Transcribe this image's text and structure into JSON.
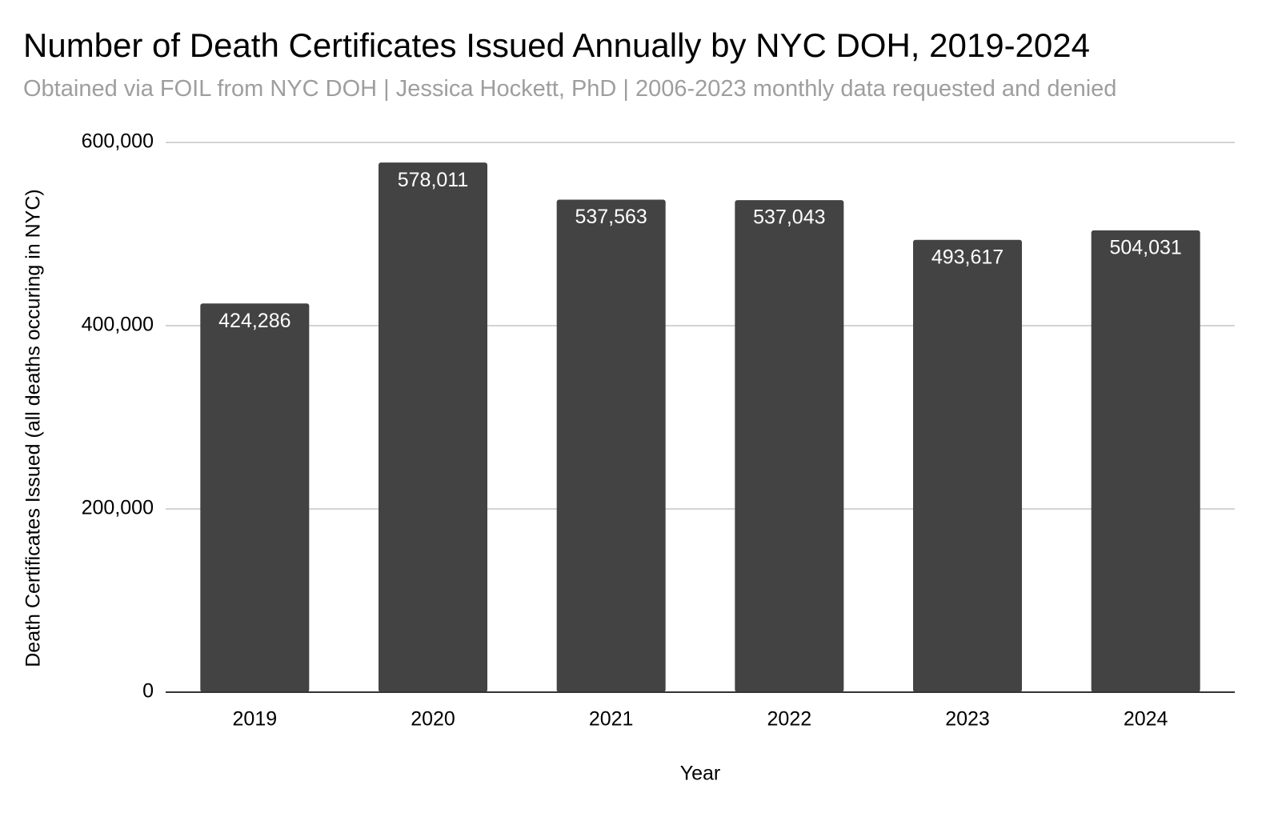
{
  "chart_data": {
    "type": "bar",
    "title": "Number of Death Certificates Issued Annually by NYC DOH, 2019-2024",
    "subtitle": "Obtained via FOIL from NYC DOH | Jessica Hockett, PhD | 2006-2023 monthly data requested and denied",
    "xlabel": "Year",
    "ylabel": "Death Certificates Issued (all deaths occuring in NYC)",
    "categories": [
      "2019",
      "2020",
      "2021",
      "2022",
      "2023",
      "2024"
    ],
    "values": [
      424286,
      578011,
      537563,
      537043,
      493617,
      504031
    ],
    "value_labels": [
      "424,286",
      "578,011",
      "537,563",
      "537,043",
      "493,617",
      "504,031"
    ],
    "ylim": [
      0,
      600000
    ],
    "y_ticks": [
      0,
      200000,
      400000,
      600000
    ],
    "y_tick_labels": [
      "0",
      "200,000",
      "400,000",
      "600,000"
    ],
    "grid": true,
    "legend": "none",
    "colors": {
      "bar": "#434343",
      "gridline": "#d3d3d3",
      "axis": "#333333",
      "title": "#000000",
      "subtitle": "#9e9e9e",
      "data_label": "#ffffff"
    }
  }
}
